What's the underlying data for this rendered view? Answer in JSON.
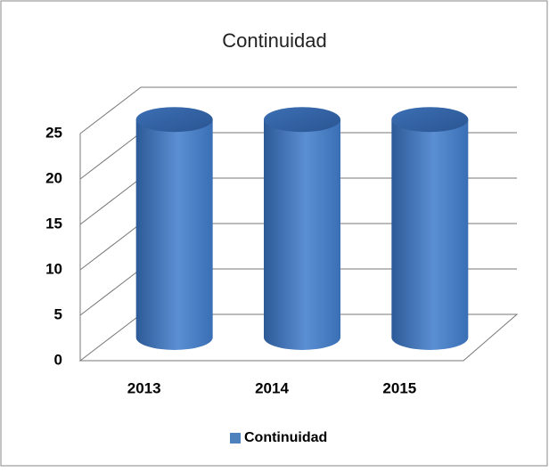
{
  "chart_data": {
    "type": "bar",
    "title": "Continuidad",
    "categories": [
      "2013",
      "2014",
      "2015"
    ],
    "series": [
      {
        "name": "Continuidad",
        "color": "#4f81bd",
        "values": [
          24,
          24,
          24
        ]
      }
    ],
    "ylim": [
      0,
      25
    ],
    "yticks": [
      0,
      5,
      10,
      15,
      20,
      25
    ],
    "grid": true,
    "legend": "bottom"
  }
}
